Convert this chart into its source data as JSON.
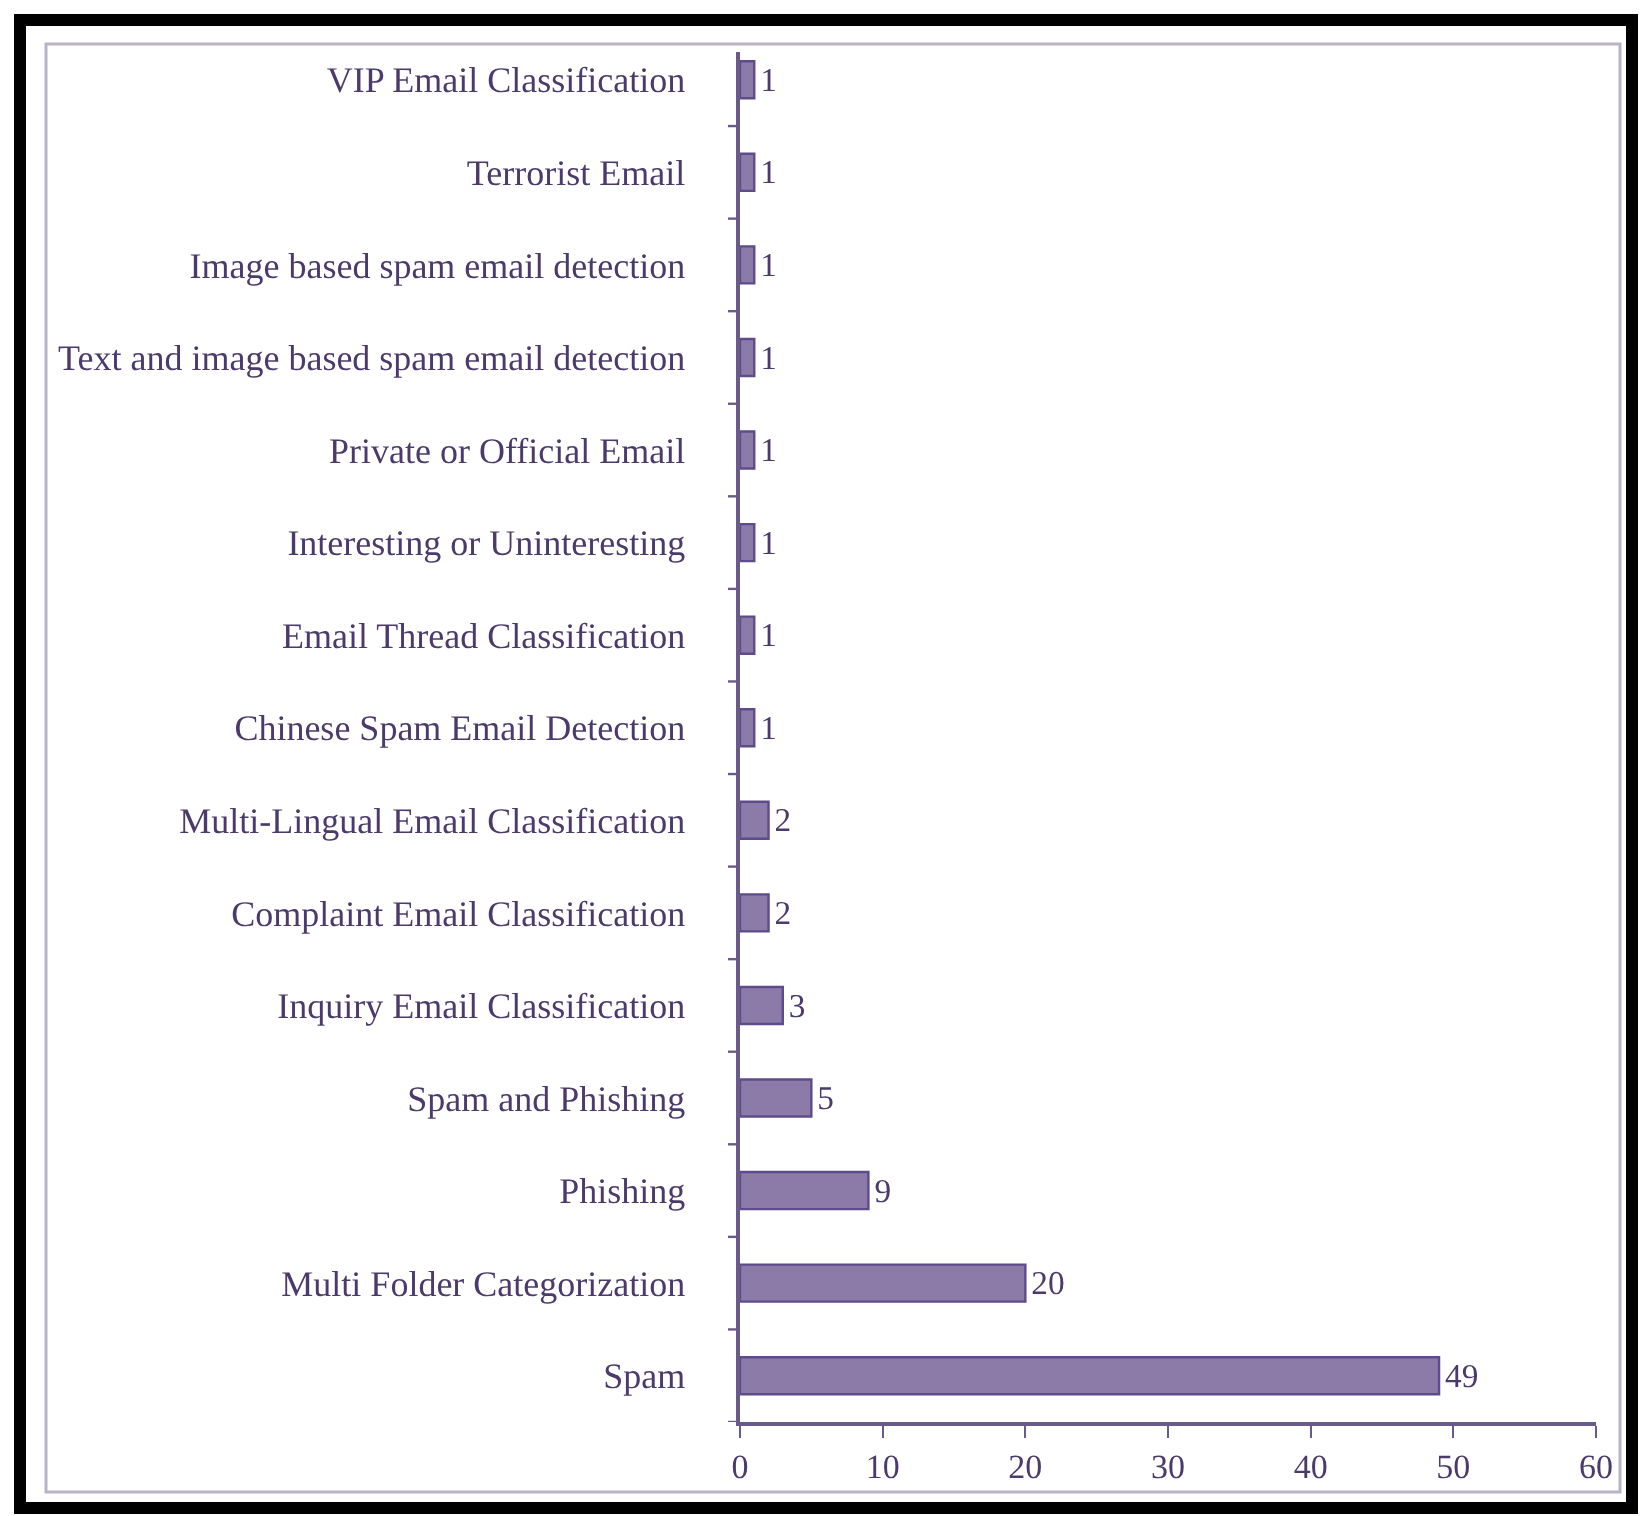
{
  "chart_data": {
    "type": "bar",
    "orientation": "horizontal",
    "categories": [
      "VIP Email Classification",
      "Terrorist Email",
      "Image based spam email detection",
      "Text and image based spam email detection",
      "Private or Official Email",
      "Interesting or Uninteresting",
      "Email Thread Classification",
      "Chinese Spam Email Detection",
      "Multi-Lingual Email Classification",
      "Complaint Email Classification",
      "Inquiry Email Classification",
      "Spam and Phishing",
      "Phishing",
      "Multi Folder Categorization",
      "Spam"
    ],
    "values": [
      1,
      1,
      1,
      1,
      1,
      1,
      1,
      1,
      2,
      2,
      3,
      5,
      9,
      20,
      49
    ],
    "color": "#8c7aa8",
    "xlim": [
      0,
      60
    ],
    "xticks": [
      0,
      10,
      20,
      30,
      40,
      50,
      60
    ],
    "data_labels": true,
    "grid": false,
    "legend": false
  }
}
